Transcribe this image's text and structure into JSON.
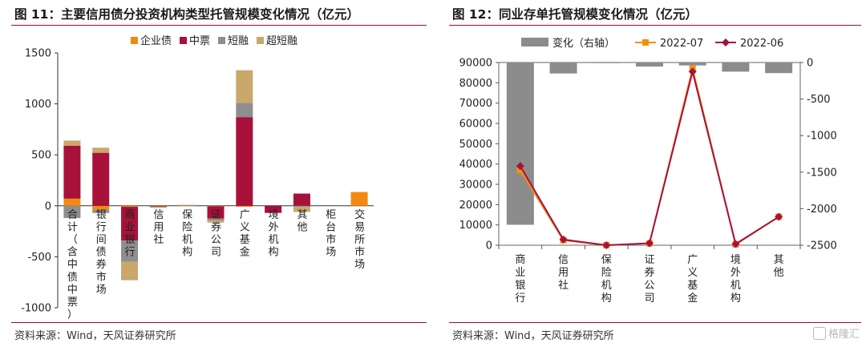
{
  "panels": {
    "left": {
      "title": "图 11：主要信用债分投资机构类型托管规模变化情况（亿元）",
      "source": "资料来源：Wind，天风证券研究所"
    },
    "right": {
      "title": "图 12：同业存单托管规模变化情况（亿元）",
      "source": "资料来源：Wind，天风证券研究所",
      "watermark": "格隆汇"
    }
  },
  "colors": {
    "accent_rule": "#9b0e2b",
    "corp_bond": "#f28a11",
    "mtn": "#a8113a",
    "short": "#8e8e8e",
    "super_short": "#c8a86b",
    "change_bar": "#8c8c8c",
    "line_2022_07": "#f5900c",
    "line_2022_06": "#a8113a"
  },
  "chart_data": [
    {
      "type": "bar",
      "stacked": true,
      "categories": [
        "合计（含中债中票）",
        "银行间债券市场",
        "商业银行",
        "信用社",
        "保险机构",
        "证券公司",
        "广义基金",
        "境外机构",
        "其他",
        "柜台市场",
        "交易所市场"
      ],
      "series": [
        {
          "name": "企业债",
          "values": [
            70,
            -40,
            -10,
            -5,
            0,
            -5,
            -10,
            0,
            0,
            0,
            135
          ]
        },
        {
          "name": "中票",
          "values": [
            520,
            520,
            -330,
            -5,
            0,
            -120,
            870,
            -70,
            120,
            0,
            0
          ]
        },
        {
          "name": "短融",
          "values": [
            -120,
            -30,
            -210,
            -5,
            0,
            -20,
            140,
            0,
            -10,
            0,
            0
          ]
        },
        {
          "name": "超短融",
          "values": [
            50,
            50,
            -180,
            -5,
            10,
            -20,
            320,
            0,
            -50,
            0,
            0
          ]
        }
      ],
      "yticks": [
        -1000,
        -500,
        0,
        500,
        1000,
        1500
      ],
      "ylim": [
        -1000,
        1500
      ],
      "legend": "top"
    },
    {
      "type": "bar",
      "categories": [
        "商业银行",
        "信用社",
        "保险机构",
        "证券公司",
        "广义基金",
        "境外机构",
        "其他"
      ],
      "series": [
        {
          "name": "变化（右轴）",
          "type": "bar",
          "axis": "right",
          "values": [
            -2220,
            -150,
            -3,
            -55,
            -40,
            -125,
            -145
          ]
        },
        {
          "name": "2022-07",
          "type": "line",
          "axis": "left",
          "values": [
            37000,
            2500,
            0,
            900,
            87000,
            400,
            14000
          ]
        },
        {
          "name": "2022-06",
          "type": "line",
          "axis": "left",
          "values": [
            39000,
            2800,
            0,
            1000,
            85500,
            600,
            14000
          ]
        }
      ],
      "yticks_left": [
        0,
        10000,
        20000,
        30000,
        40000,
        50000,
        60000,
        70000,
        80000,
        90000
      ],
      "ylim_left": [
        0,
        90000
      ],
      "yticks_right": [
        -2500,
        -2000,
        -1500,
        -1000,
        -500,
        0
      ],
      "ylim_right": [
        -2500,
        0
      ],
      "legend": "top"
    }
  ]
}
